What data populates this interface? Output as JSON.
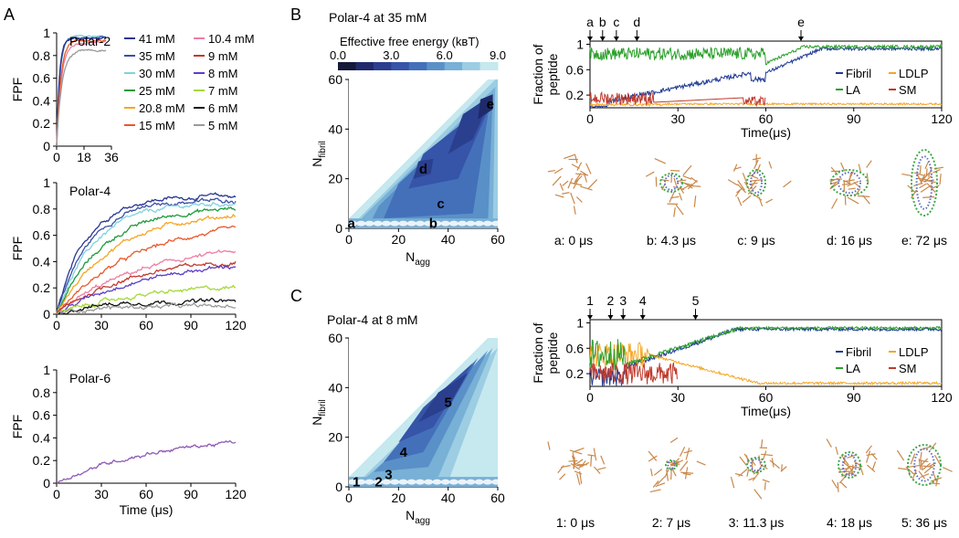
{
  "panel_labels": [
    "A",
    "B",
    "C"
  ],
  "legend": {
    "title": "",
    "entries": [
      {
        "label": "41 mM",
        "color": "#283593"
      },
      {
        "label": "35 mM",
        "color": "#3b4fa3"
      },
      {
        "label": "30 mM",
        "color": "#7ed3df"
      },
      {
        "label": "25 mM",
        "color": "#1e9a3a"
      },
      {
        "label": "20.8 mM",
        "color": "#f5a623"
      },
      {
        "label": "15 mM",
        "color": "#e8582a"
      },
      {
        "label": "10.4 mM",
        "color": "#ee7ea0"
      },
      {
        "label": "9 mM",
        "color": "#c0392b"
      },
      {
        "label": "8 mM",
        "color": "#5b3ec9"
      },
      {
        "label": "7 mM",
        "color": "#a6d83c"
      },
      {
        "label": "6 mM",
        "color": "#111111"
      },
      {
        "label": "5 mM",
        "color": "#9a9a9a"
      }
    ]
  },
  "colorbar": {
    "title": "Effective free energy (kʙT)",
    "ticks": [
      "0.0",
      "3.0",
      "6.0",
      "9.0"
    ],
    "colors": [
      "#151a3a",
      "#1f2a6b",
      "#2b3f8f",
      "#3654a8",
      "#4470ba",
      "#5a90c8",
      "#78b0d6",
      "#9ccde3",
      "#c6e8ef"
    ]
  },
  "snapshots_B": [
    "a: 0 μs",
    "b: 4.3 μs",
    "c: 9 μs",
    "d: 16 μs",
    "e: 72 μs"
  ],
  "snapshots_C": [
    "1: 0 μs",
    "2: 7 μs",
    "3: 11.3 μs",
    "4: 18 μs",
    "5: 36 μs"
  ],
  "chart_data": [
    {
      "id": "A1",
      "type": "line",
      "title": "Polar-2",
      "xlabel": "",
      "ylabel": "FPF",
      "xlim": [
        0,
        36
      ],
      "ylim": [
        0,
        1
      ],
      "xticks": [
        0,
        18,
        36
      ],
      "yticks": [
        0,
        0.2,
        0.4,
        0.6,
        0.8,
        1
      ],
      "series": [
        {
          "name": "30 mM",
          "color": "#7ed3df",
          "plateau": 0.97,
          "rate": 0.45,
          "t_end": 33
        },
        {
          "name": "35 mM",
          "color": "#3b4fa3",
          "plateau": 0.96,
          "rate": 0.5,
          "t_end": 33
        },
        {
          "name": "41 mM",
          "color": "#283593",
          "plateau": 0.95,
          "rate": 0.55,
          "t_end": 33
        },
        {
          "name": "10.4 mM",
          "color": "#ee7ea0",
          "plateau": 0.92,
          "rate": 0.32,
          "t_end": 33
        },
        {
          "name": "15 mM",
          "color": "#e8582a",
          "plateau": 0.93,
          "rate": 0.38,
          "t_end": 33
        },
        {
          "name": "5 mM",
          "color": "#9a9a9a",
          "plateau": 0.84,
          "rate": 0.3,
          "t_end": 33
        }
      ]
    },
    {
      "id": "A2",
      "type": "line",
      "title": "Polar-4",
      "xlabel": "",
      "ylabel": "FPF",
      "xlim": [
        0,
        120
      ],
      "ylim": [
        0,
        1
      ],
      "xticks": [
        0,
        30,
        60,
        90,
        120
      ],
      "yticks": [
        0,
        0.2,
        0.4,
        0.6,
        0.8,
        1
      ],
      "series": [
        {
          "name": "41 mM",
          "color": "#283593",
          "plateau": 0.9,
          "rate": 0.05
        },
        {
          "name": "35 mM",
          "color": "#3b4fa3",
          "plateau": 0.87,
          "rate": 0.045
        },
        {
          "name": "30 mM",
          "color": "#7ed3df",
          "plateau": 0.85,
          "rate": 0.04
        },
        {
          "name": "25 mM",
          "color": "#1e9a3a",
          "plateau": 0.82,
          "rate": 0.032
        },
        {
          "name": "20.8 mM",
          "color": "#f5a623",
          "plateau": 0.78,
          "rate": 0.027
        },
        {
          "name": "15 mM",
          "color": "#e8582a",
          "plateau": 0.72,
          "rate": 0.019
        },
        {
          "name": "10.4 mM",
          "color": "#ee7ea0",
          "plateau": 0.55,
          "rate": 0.017
        },
        {
          "name": "9 mM",
          "color": "#c0392b",
          "plateau": 0.44,
          "rate": 0.02
        },
        {
          "name": "8 mM",
          "color": "#5b3ec9",
          "plateau": 0.42,
          "rate": 0.017
        },
        {
          "name": "7 mM",
          "color": "#a6d83c",
          "plateau": 0.24,
          "rate": 0.016
        },
        {
          "name": "6 mM",
          "color": "#111111",
          "plateau": 0.1,
          "rate": 0.04
        },
        {
          "name": "5 mM",
          "color": "#9a9a9a",
          "plateau": 0.06,
          "rate": 0.05
        }
      ]
    },
    {
      "id": "A3",
      "type": "line",
      "title": "Polar-6",
      "xlabel": "Time (μs)",
      "ylabel": "FPF",
      "xlim": [
        0,
        120
      ],
      "ylim": [
        0,
        1
      ],
      "xticks": [
        0,
        30,
        60,
        90,
        120
      ],
      "yticks": [
        0,
        0.2,
        0.4,
        0.6,
        0.8,
        1
      ],
      "series": [
        {
          "name": "Polar-6",
          "color": "#8e5bb5",
          "plateau": 0.42,
          "rate": 0.016
        }
      ]
    },
    {
      "id": "B_map",
      "type": "heatmap",
      "title": "Polar-4 at 35 mM",
      "xlabel": "N",
      "xlabel_sub": "agg",
      "ylabel": "N",
      "ylabel_sub": "fibril",
      "xlim": [
        0,
        60
      ],
      "ylim": [
        0,
        60
      ],
      "xticks": [
        0,
        20,
        40,
        60
      ],
      "yticks": [
        0,
        20,
        40,
        60
      ],
      "minima": [
        {
          "label": "a",
          "x": 1,
          "y": 2
        },
        {
          "label": "b",
          "x": 34,
          "y": 2
        },
        {
          "label": "c",
          "x": 37,
          "y": 10
        },
        {
          "label": "d",
          "x": 30,
          "y": 24
        },
        {
          "label": "e",
          "x": 57,
          "y": 50
        }
      ]
    },
    {
      "id": "B_line",
      "type": "line",
      "title": "",
      "xlabel": "Time(μs)",
      "ylabel": "Fraction of peptide",
      "xlim": [
        0,
        120
      ],
      "ylim": [
        0,
        1.05
      ],
      "xticks": [
        0,
        30,
        60,
        90,
        120
      ],
      "yticks": [
        0.2,
        0.6,
        1.0
      ],
      "markers": [
        {
          "label": "a",
          "t": 0
        },
        {
          "label": "b",
          "t": 4.3
        },
        {
          "label": "c",
          "t": 9
        },
        {
          "label": "d",
          "t": 16
        },
        {
          "label": "e",
          "t": 72
        }
      ],
      "series": [
        {
          "name": "Fibril",
          "color": "#1f3a93"
        },
        {
          "name": "LDLP",
          "color": "#f5a623"
        },
        {
          "name": "LA",
          "color": "#2ca02c"
        },
        {
          "name": "SM",
          "color": "#c0392b"
        }
      ]
    },
    {
      "id": "C_map",
      "type": "heatmap",
      "title": "Polar-4 at 8 mM",
      "xlabel": "N",
      "xlabel_sub": "agg",
      "ylabel": "N",
      "ylabel_sub": "fibril",
      "xlim": [
        0,
        60
      ],
      "ylim": [
        0,
        60
      ],
      "xticks": [
        0,
        20,
        40,
        60
      ],
      "yticks": [
        0,
        20,
        40,
        60
      ],
      "minima": [
        {
          "label": "1",
          "x": 3,
          "y": 2
        },
        {
          "label": "2",
          "x": 12,
          "y": 2
        },
        {
          "label": "3",
          "x": 16,
          "y": 5
        },
        {
          "label": "4",
          "x": 22,
          "y": 14
        },
        {
          "label": "5",
          "x": 40,
          "y": 34
        }
      ]
    },
    {
      "id": "C_line",
      "type": "line",
      "title": "",
      "xlabel": "Time(μs)",
      "ylabel": "Fraction of peptide",
      "xlim": [
        0,
        120
      ],
      "ylim": [
        0,
        1.05
      ],
      "xticks": [
        0,
        30,
        60,
        90,
        120
      ],
      "yticks": [
        0.2,
        0.6,
        1.0
      ],
      "markers": [
        {
          "label": "1",
          "t": 0
        },
        {
          "label": "2",
          "t": 7
        },
        {
          "label": "3",
          "t": 11.3
        },
        {
          "label": "4",
          "t": 18
        },
        {
          "label": "5",
          "t": 36
        }
      ],
      "series": [
        {
          "name": "Fibril",
          "color": "#1f3a93"
        },
        {
          "name": "LDLP",
          "color": "#f5a623"
        },
        {
          "name": "LA",
          "color": "#2ca02c"
        },
        {
          "name": "SM",
          "color": "#c0392b"
        }
      ]
    }
  ]
}
